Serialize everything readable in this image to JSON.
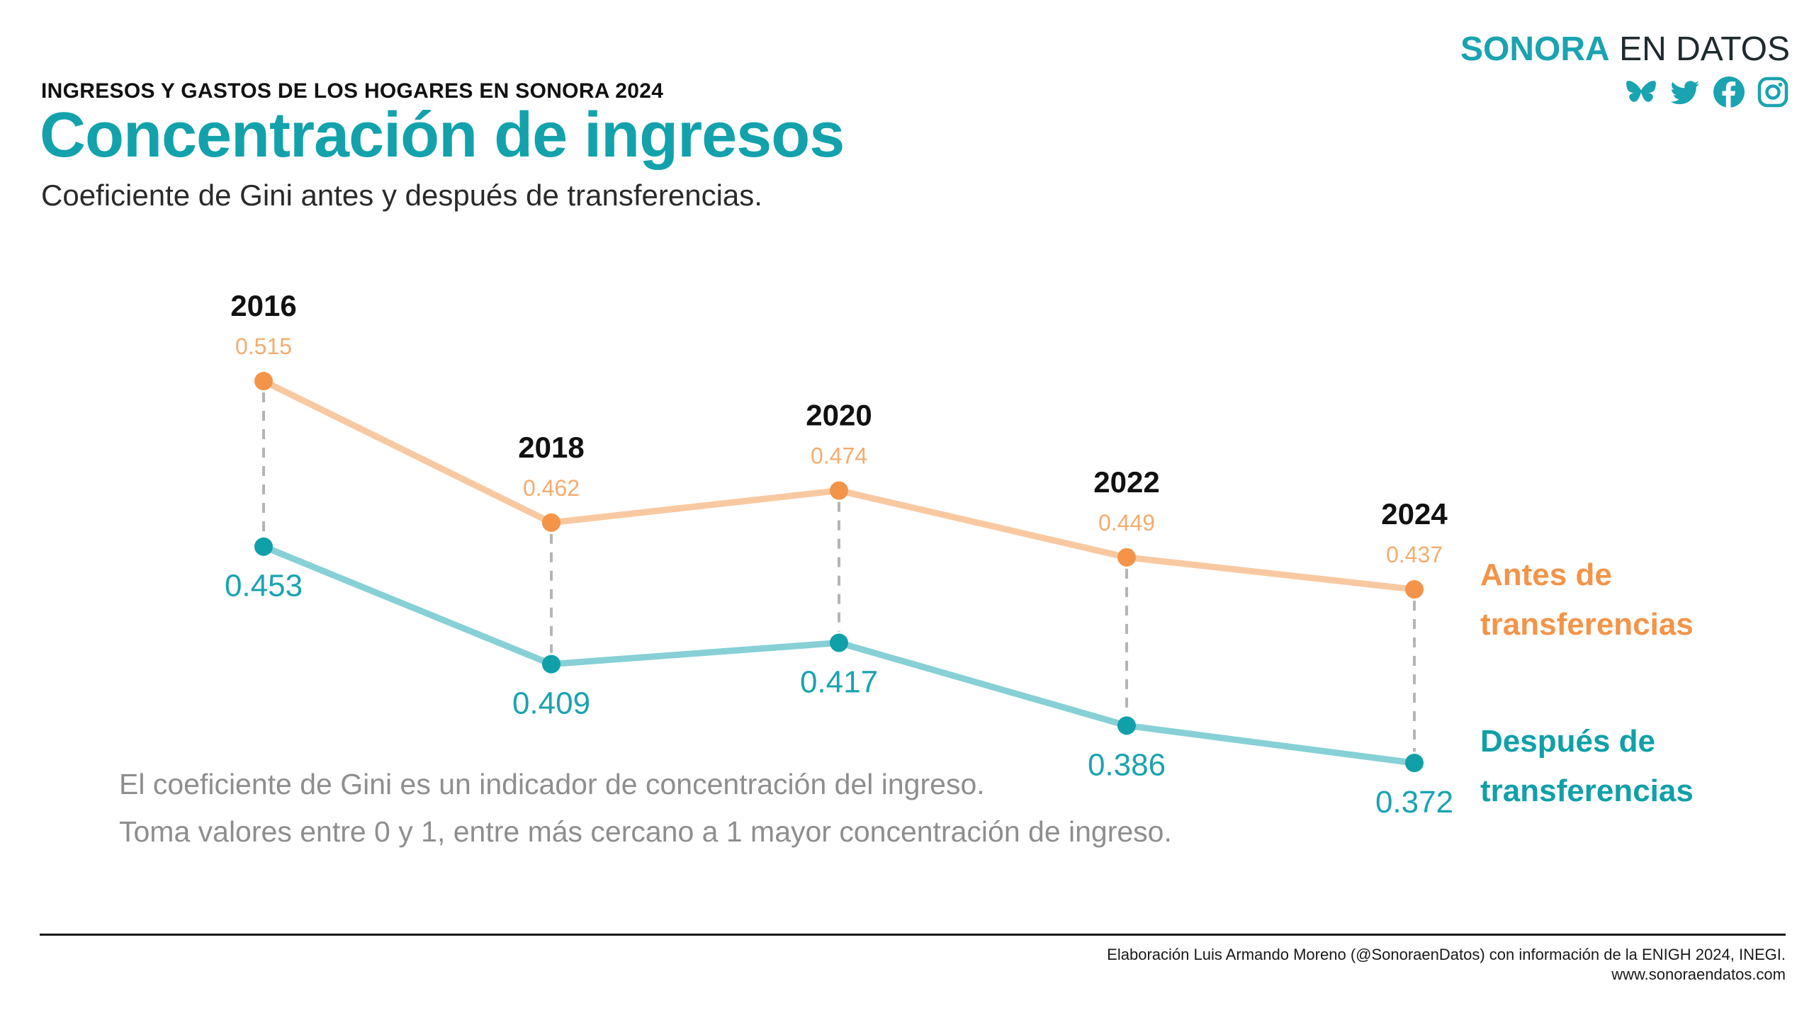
{
  "brand": {
    "name_strong": "SONORA",
    "name_rest": "EN DATOS",
    "icons": [
      "bluesky-icon",
      "twitter-icon",
      "facebook-icon",
      "instagram-icon"
    ],
    "color": "#1aa3b0"
  },
  "header": {
    "kicker": "INGRESOS Y GASTOS DE LOS HOGARES EN SONORA 2024",
    "title": "Concentración de ingresos",
    "subtitle": "Coeficiente de Gini antes y después de transferencias."
  },
  "chart_data": {
    "type": "line",
    "x": [
      "2016",
      "2018",
      "2020",
      "2022",
      "2024"
    ],
    "series": [
      {
        "name": "Antes de transferencias",
        "label_lines": [
          "Antes de",
          "transferencias"
        ],
        "values": [
          0.515,
          0.462,
          0.474,
          0.449,
          0.437
        ],
        "point_color": "#f39449",
        "line_color": "#f8c9a1"
      },
      {
        "name": "Después de transferencias",
        "label_lines": [
          "Después de",
          "transferencias"
        ],
        "values": [
          0.453,
          0.409,
          0.417,
          0.386,
          0.372
        ],
        "point_color": "#10a0a8",
        "line_color": "#86d0d6"
      }
    ],
    "connector_color": "#b5b5b5"
  },
  "note": {
    "line1": "El coeficiente de Gini es un indicador de concentración del ingreso.",
    "line2": "Toma valores entre 0 y 1, entre más cercano a 1 mayor concentración de ingreso."
  },
  "footer": {
    "credit": "Elaboración Luis Armando Moreno (@SonoraenDatos) con información de la ENIGH 2024, INEGI.",
    "url": "www.sonoraendatos.com"
  }
}
